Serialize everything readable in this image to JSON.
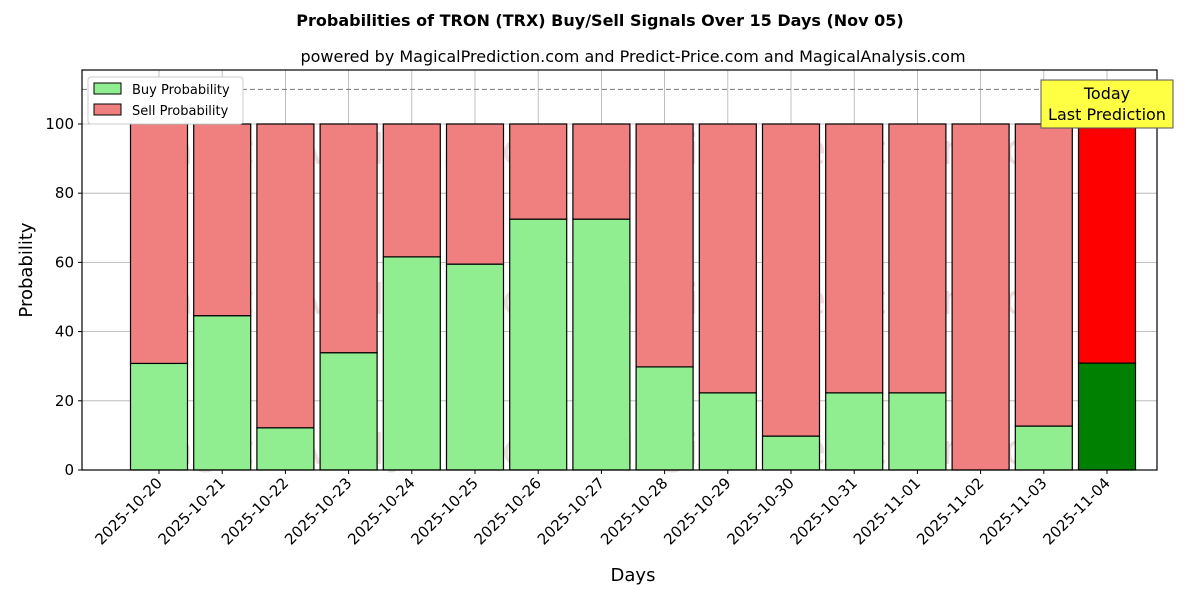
{
  "chart_data": {
    "type": "bar",
    "stacked": true,
    "title": "Probabilities of TRON (TRX) Buy/Sell Signals Over 15 Days (Nov 05)",
    "subtitle": "powered by MagicalPrediction.com and Predict-Price.com and MagicalAnalysis.com",
    "xlabel": "Days",
    "ylabel": "Probability",
    "ylim": [
      0,
      115.6
    ],
    "yticks": [
      0,
      20,
      40,
      60,
      80,
      100
    ],
    "grid": true,
    "legend_position": "top-left",
    "categories": [
      "2025-10-20",
      "2025-10-21",
      "2025-10-22",
      "2025-10-23",
      "2025-10-24",
      "2025-10-25",
      "2025-10-26",
      "2025-10-27",
      "2025-10-28",
      "2025-10-29",
      "2025-10-30",
      "2025-10-31",
      "2025-11-01",
      "2025-11-02",
      "2025-11-03",
      "2025-11-04"
    ],
    "series": [
      {
        "name": "Buy Probability",
        "color": "#90ee90",
        "values": [
          30.8,
          44.6,
          12.2,
          33.9,
          61.6,
          59.5,
          72.5,
          72.5,
          29.8,
          22.3,
          9.8,
          22.3,
          22.3,
          0,
          12.7,
          30.9
        ]
      },
      {
        "name": "Sell Probability",
        "color": "#f08080",
        "values": [
          69.2,
          55.4,
          87.8,
          66.1,
          38.4,
          40.5,
          27.5,
          27.5,
          70.2,
          77.7,
          90.2,
          77.7,
          77.7,
          100,
          87.3,
          69.1
        ]
      }
    ],
    "highlight": {
      "index": 15,
      "buy_color": "#008000",
      "sell_color": "#ff0000"
    },
    "reference_line": 110,
    "annotation": {
      "line1": "Today",
      "line2": "Last Prediction",
      "color": "#ffff44"
    },
    "watermarks": [
      "MagicalAnalysis.com",
      "MagicalPrediction.com"
    ]
  }
}
